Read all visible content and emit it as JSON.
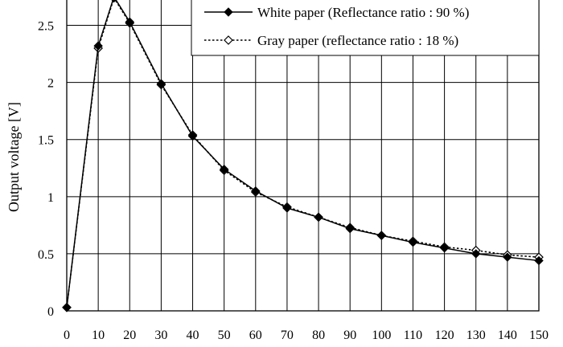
{
  "chart_data": {
    "type": "line",
    "title": "",
    "xlabel": "",
    "ylabel": "Output voltage [V]",
    "xlim": [
      0,
      150
    ],
    "ylim": [
      0,
      2.75
    ],
    "xticks": [
      0,
      10,
      20,
      30,
      40,
      50,
      60,
      70,
      80,
      90,
      100,
      110,
      120,
      130,
      140,
      150
    ],
    "yticks": [
      0,
      0.5,
      1,
      1.5,
      2,
      2.5
    ],
    "ytick_labels": [
      "0",
      "0.5",
      "1",
      "1.5",
      "2",
      "2.5"
    ],
    "grid": true,
    "legend_position": "top-right",
    "series": [
      {
        "name": "White paper (Reflectance ratio : 90 %)",
        "style": "solid",
        "marker": "filled-diamond",
        "color": "#000000",
        "x": [
          0,
          10,
          15,
          20,
          30,
          40,
          50,
          60,
          70,
          80,
          90,
          100,
          110,
          120,
          130,
          140,
          150
        ],
        "y": [
          0.03,
          2.32,
          2.75,
          2.53,
          1.99,
          1.53,
          1.24,
          1.05,
          0.9,
          0.82,
          0.72,
          0.66,
          0.6,
          0.55,
          0.5,
          0.47,
          0.44
        ]
      },
      {
        "name": "Gray paper (reflectance ratio : 18 %)",
        "style": "dotted",
        "marker": "open-diamond",
        "color": "#000000",
        "x": [
          0,
          10,
          15,
          20,
          30,
          40,
          50,
          60,
          70,
          80,
          90,
          100,
          110,
          120,
          130,
          140,
          150
        ],
        "y": [
          0.03,
          2.3,
          2.74,
          2.52,
          1.98,
          1.54,
          1.23,
          1.04,
          0.91,
          0.82,
          0.73,
          0.66,
          0.61,
          0.56,
          0.53,
          0.49,
          0.47
        ]
      }
    ]
  }
}
